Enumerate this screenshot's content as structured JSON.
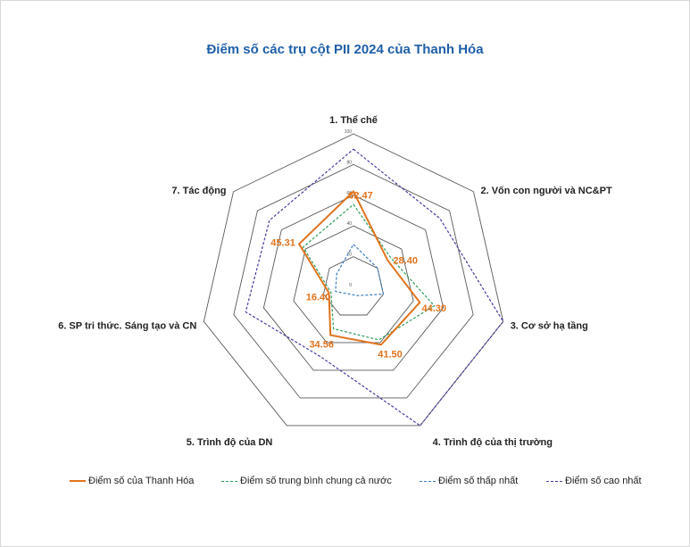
{
  "chart_data": {
    "type": "radar",
    "title": "Điểm số các trụ cột PII 2024 của Thanh Hóa",
    "axes": [
      "1. Thể chế",
      "2. Vốn con người và NC&PT",
      "3. Cơ sở hạ tầng",
      "4. Trình độ của thị trường",
      "5. Trình độ của DN",
      "6. SP tri thức. Sáng tạo và CN",
      "7. Tác động"
    ],
    "rmax": 100,
    "ticks": [
      0,
      20,
      40,
      60,
      80,
      100
    ],
    "series": [
      {
        "name": "Điểm số của Thanh Hóa",
        "color": "#e0731d",
        "style": "solid",
        "values": [
          62.47,
          28.4,
          44.3,
          41.5,
          34.56,
          16.4,
          45.31
        ],
        "labels": [
          "62.47",
          "28.40",
          "44.30",
          "41.50",
          "34.56",
          "16.40",
          "45.31"
        ]
      },
      {
        "name": "Điểm số trung bình chung cả nước",
        "color": "#2e9e5b",
        "style": "dashed",
        "values": [
          54,
          31,
          54,
          38,
          30,
          15,
          42
        ]
      },
      {
        "name": "Điểm số thấp nhất",
        "color": "#3a7cc0",
        "style": "dashed",
        "values": [
          28,
          20,
          20,
          6,
          5,
          12,
          14
        ]
      },
      {
        "name": "Điểm số cao nhất",
        "color": "#4b3aa0",
        "style": "dashed",
        "values": [
          90,
          72,
          100,
          100,
          50,
          72,
          70
        ]
      }
    ]
  }
}
